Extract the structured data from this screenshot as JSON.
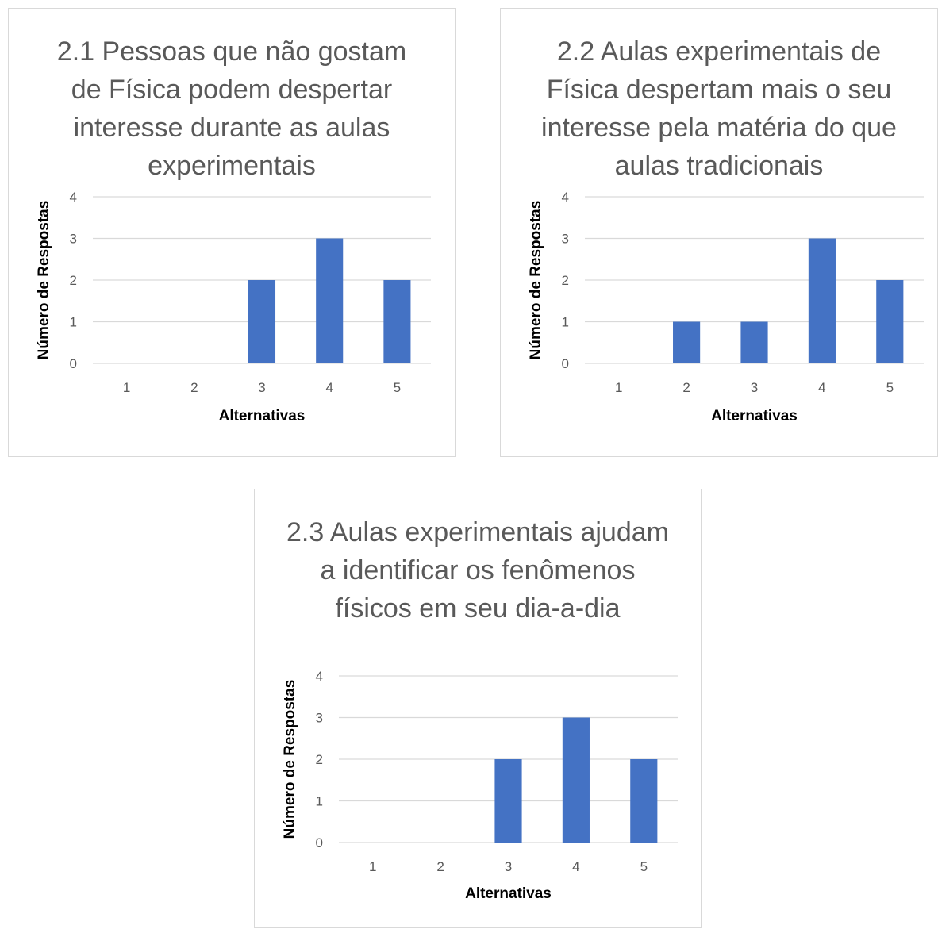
{
  "colors": {
    "bar": "#4472c4",
    "grid": "#d9d9d9",
    "text": "#595959"
  },
  "chart_data": [
    {
      "type": "bar",
      "title": "2.1 Pessoas que não gostam de Física podem despertar interesse durante as aulas experimentais",
      "xlabel": "Alternativas",
      "ylabel": "Número de Respostas",
      "categories": [
        "1",
        "2",
        "3",
        "4",
        "5"
      ],
      "values": [
        0,
        0,
        2,
        3,
        2
      ],
      "ylim": [
        0,
        4
      ],
      "yticks": [
        "0",
        "1",
        "2",
        "3",
        "4"
      ],
      "grid": true,
      "legend": "none"
    },
    {
      "type": "bar",
      "title": "2.2 Aulas experimentais de Física despertam mais o seu interesse pela matéria do que aulas tradicionais",
      "xlabel": "Alternativas",
      "ylabel": "Número de Respostas",
      "categories": [
        "1",
        "2",
        "3",
        "4",
        "5"
      ],
      "values": [
        0,
        1,
        1,
        3,
        2
      ],
      "ylim": [
        0,
        4
      ],
      "yticks": [
        "0",
        "1",
        "2",
        "3",
        "4"
      ],
      "grid": true,
      "legend": "none"
    },
    {
      "type": "bar",
      "title": "2.3 Aulas experimentais ajudam a identificar os fenômenos físicos em seu dia-a-dia",
      "xlabel": "Alternativas",
      "ylabel": "Número de Respostas",
      "categories": [
        "1",
        "2",
        "3",
        "4",
        "5"
      ],
      "values": [
        0,
        0,
        2,
        3,
        2
      ],
      "ylim": [
        0,
        4
      ],
      "yticks": [
        "0",
        "1",
        "2",
        "3",
        "4"
      ],
      "grid": true,
      "legend": "none"
    }
  ]
}
